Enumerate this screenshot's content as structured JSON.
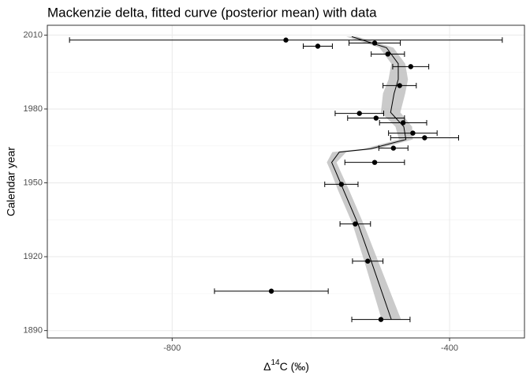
{
  "chart_data": {
    "type": "scatter",
    "title": "Mackenzie delta, fitted curve (posterior mean) with data",
    "xlabel": {
      "base": "Δ",
      "sup": "14",
      "rest": "C (‰)"
    },
    "ylabel": "Calendar year",
    "xlim": [
      -980,
      -292
    ],
    "ylim": [
      1887,
      2014
    ],
    "xticks": [
      -800,
      -400
    ],
    "yticks": [
      1890,
      1920,
      1950,
      1980,
      2010
    ],
    "xminor": [
      -600
    ],
    "yminor": [
      1905,
      1935,
      1965,
      1995
    ],
    "grid": true,
    "points": {
      "color": "#000000",
      "x": [
        -636,
        -590,
        -508,
        -489,
        -456,
        -472,
        -530,
        -506,
        -467,
        -453,
        -436,
        -481,
        -508,
        -556,
        -536,
        -518,
        -657,
        -499
      ],
      "values": [
        2008,
        2005.5,
        2006.8,
        2002.3,
        1997.2,
        1989.5,
        1978.2,
        1976.3,
        1974.4,
        1970.2,
        1968.3,
        1964.1,
        1958.3,
        1949.4,
        1933.3,
        1918.2,
        1906,
        1894.5
      ],
      "xerr": [
        312,
        21,
        37,
        24,
        26,
        24,
        35,
        41,
        34,
        35,
        49,
        21,
        43,
        24,
        22,
        22,
        82,
        42
      ]
    },
    "curve": {
      "color": "#000000",
      "band_color": "#bdbdbd",
      "x": [
        -484,
        -513,
        -532,
        -553,
        -565,
        -570,
        -559,
        -514,
        -463,
        -466,
        -485,
        -480,
        -474,
        -474,
        -491,
        -541
      ],
      "values": [
        1894.5,
        1918.2,
        1933.3,
        1947.1,
        1955.1,
        1958.3,
        1962.5,
        1963.8,
        1967.6,
        1972.8,
        1978.6,
        1986.3,
        1992,
        1998.4,
        2004.9,
        2009.4
      ],
      "lower": [
        -498,
        -523,
        -540,
        -561,
        -572,
        -577,
        -569,
        -524,
        -473,
        -478,
        -499,
        -496,
        -488,
        -484,
        -501,
        -549
      ],
      "upper": [
        -470,
        -503,
        -524,
        -545,
        -558,
        -563,
        -549,
        -504,
        -453,
        -454,
        -471,
        -464,
        -460,
        -464,
        -481,
        -533
      ]
    }
  }
}
